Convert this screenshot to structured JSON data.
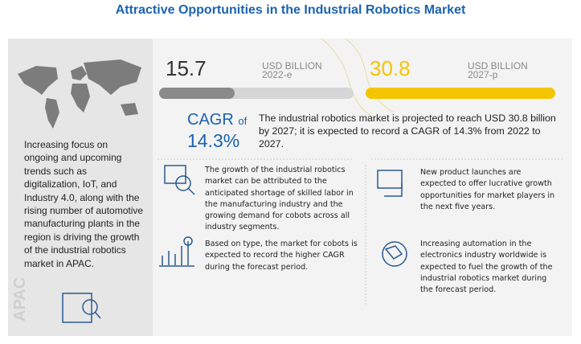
{
  "header": {
    "title": "Attractive Opportunities in the Industrial Robotics Market"
  },
  "left": {
    "text": "Increasing focus on ongoing and upcoming trends such as digitalization, IoT, and Industry 4.0, along with the rising number of automotive manufacturing plants in the region is driving the growth of the industrial robotics market in APAC.",
    "region": "APAC"
  },
  "stats": [
    {
      "value": "15.7",
      "unit": "USD BILLION",
      "year": "2022-e"
    },
    {
      "value": "30.8",
      "unit": "USD BILLION",
      "year": "2027-p"
    }
  ],
  "cagr": {
    "label": "CAGR",
    "of": "of",
    "value": "14.3%",
    "text": "The industrial robotics market is projected to reach USD 30.8 billion by 2027; it is expected to record a CAGR of 14.3% from 2022 to 2027."
  },
  "points": [
    "The growth of the industrial robotics market can be attributed to the anticipated shortage of skilled labor in the manufacturing industry and the growing demand for cobots across all industry segments.",
    "New product launches are expected to offer lucrative growth opportunities for market players in the next five years.",
    "Based on type, the market for cobots is expected to record the higher CAGR during the forecast period.",
    "Increasing automation in the electronics industry worldwide is expected to fuel the growth of the industrial robotics market during the forecast period."
  ]
}
